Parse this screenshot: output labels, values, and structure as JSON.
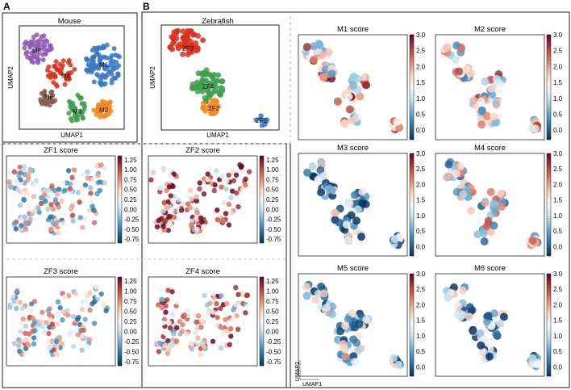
{
  "panel_labels": {
    "a": "A",
    "b": "B"
  },
  "axis_labels": {
    "umap1": "UMAP1",
    "umap2": "UMAP2"
  },
  "colors": {
    "M1": "#3a78c2",
    "M2": "#f28a1e",
    "M3": "#3e9d4e",
    "M4": "#d7301f",
    "M5": "#8e59b7",
    "M6": "#8b5a4a",
    "ZF1": "#3a78c2",
    "ZF2": "#f28a1e",
    "ZF3": "#d7301f",
    "ZF4": "#3e9d4e",
    "frame": "#222222",
    "dashed_divider": "#bbbbbb"
  },
  "colormap": "RdBu_r (blue = low, white = mid, red = high)",
  "mouse_umap": {
    "title": "Mouse",
    "clusters": [
      "M1",
      "M2",
      "M3",
      "M4",
      "M5",
      "M6"
    ]
  },
  "zebrafish_umap": {
    "title": "Zebrafish",
    "clusters": [
      "ZF1",
      "ZF2",
      "ZF3",
      "ZF4"
    ]
  },
  "chart_data": [
    {
      "type": "scatter",
      "title": "Mouse",
      "xlabel": "UMAP1",
      "ylabel": "UMAP2",
      "series": [
        {
          "name": "M1"
        },
        {
          "name": "M2"
        },
        {
          "name": "M3"
        },
        {
          "name": "M4"
        },
        {
          "name": "M5"
        },
        {
          "name": "M6"
        }
      ]
    },
    {
      "type": "scatter",
      "title": "Zebrafish",
      "xlabel": "UMAP1",
      "ylabel": "UMAP2",
      "series": [
        {
          "name": "ZF1"
        },
        {
          "name": "ZF2"
        },
        {
          "name": "ZF3"
        },
        {
          "name": "ZF4"
        }
      ]
    },
    {
      "type": "scatter",
      "title": "ZF1 score",
      "colorbar_ticks": [
        "1.25",
        "1.00",
        "0.75",
        "0.50",
        "0.25",
        "0.00",
        "-0.25",
        "-0.50",
        "-0.75"
      ],
      "color_range": [
        -0.85,
        1.35
      ],
      "score_bias": 0.25
    },
    {
      "type": "scatter",
      "title": "ZF2 score",
      "colorbar_ticks": [
        "1.25",
        "1.00",
        "0.75",
        "0.50",
        "0.25",
        "0.00",
        "-0.25",
        "-0.50",
        "-0.75"
      ],
      "color_range": [
        -0.85,
        1.35
      ],
      "score_bias": 0.75
    },
    {
      "type": "scatter",
      "title": "ZF3 score",
      "colorbar_ticks": [
        "1.25",
        "1.00",
        "0.75",
        "0.50",
        "0.25",
        "0.00",
        "-0.25",
        "-0.50",
        "-0.75"
      ],
      "color_range": [
        -0.85,
        1.35
      ],
      "score_bias": 0.2
    },
    {
      "type": "scatter",
      "title": "ZF4 score",
      "colorbar_ticks": [
        "1.25",
        "1.00",
        "0.75",
        "0.50",
        "0.25",
        "0.00",
        "-0.25",
        "-0.50",
        "-0.75"
      ],
      "color_range": [
        -0.85,
        1.35
      ],
      "score_bias": 0.55
    },
    {
      "type": "scatter",
      "title": "M1 score",
      "colorbar_ticks": [
        "3.0",
        "2.5",
        "2.0",
        "1.5",
        "1.0",
        "0.5",
        "0.0"
      ],
      "color_range": [
        -0.3,
        3.0
      ],
      "score_bias": 1.7
    },
    {
      "type": "scatter",
      "title": "M2 score",
      "colorbar_ticks": [
        "3.0",
        "2.5",
        "2.0",
        "1.5",
        "1.0",
        "0.5",
        "0.0"
      ],
      "color_range": [
        -0.3,
        3.0
      ],
      "score_bias": 1.4
    },
    {
      "type": "scatter",
      "title": "M3 score",
      "colorbar_ticks": [
        "3.0",
        "2.5",
        "2.0",
        "1.5",
        "1.0",
        "0.5",
        "0.0"
      ],
      "color_range": [
        -0.3,
        3.0
      ],
      "score_bias": 0.6
    },
    {
      "type": "scatter",
      "title": "M4 score",
      "colorbar_ticks": [
        "3.0",
        "2.5",
        "2.0",
        "1.5",
        "1.0",
        "0.5",
        "0.0"
      ],
      "color_range": [
        -0.3,
        3.0
      ],
      "score_bias": 1.2
    },
    {
      "type": "scatter",
      "title": "M5 score",
      "colorbar_ticks": [
        "3.0",
        "2.5",
        "2.0",
        "1.5",
        "1.0",
        "0.5",
        "0.0"
      ],
      "color_range": [
        -0.3,
        3.0
      ],
      "score_bias": 0.7
    },
    {
      "type": "scatter",
      "title": "M6 score",
      "colorbar_ticks": [
        "3.0",
        "2.5",
        "2.0",
        "1.5",
        "1.0",
        "0.5",
        "0.0"
      ],
      "color_range": [
        -0.3,
        3.0
      ],
      "score_bias": 0.6
    }
  ]
}
